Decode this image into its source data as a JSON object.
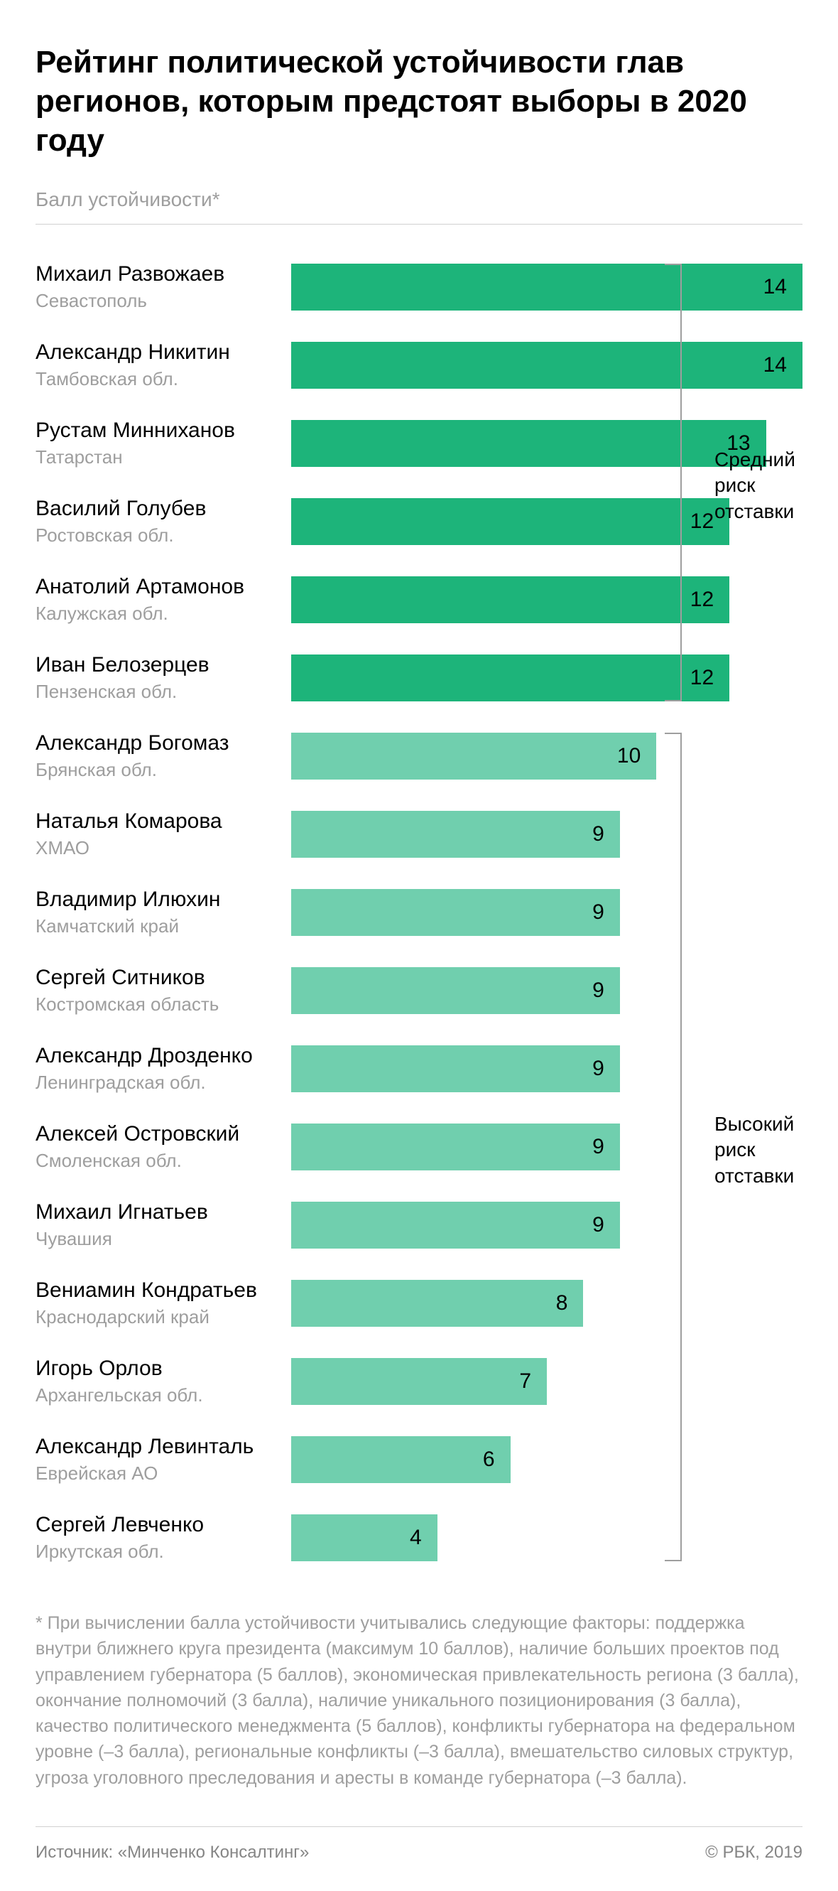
{
  "title": "Рейтинг политической устойчивости глав регионов, которым предстоят выборы в 2020 году",
  "subtitle": "Балл устойчивости*",
  "chart": {
    "type": "bar",
    "max_value": 14,
    "bar_area_width_pct": 100,
    "colors": {
      "medium_risk": "#1db47a",
      "high_risk": "#70cfae",
      "text": "#000000",
      "muted": "#9e9e9e",
      "divider": "#d0d0d0",
      "background": "#ffffff"
    },
    "rows": [
      {
        "name": "Михаил Развожаев",
        "region": "Севастополь",
        "value": 14,
        "group": "medium"
      },
      {
        "name": "Александр Никитин",
        "region": "Тамбовская обл.",
        "value": 14,
        "group": "medium"
      },
      {
        "name": "Рустам Минниханов",
        "region": "Татарстан",
        "value": 13,
        "group": "medium"
      },
      {
        "name": "Василий Голубев",
        "region": "Ростовская обл.",
        "value": 12,
        "group": "medium"
      },
      {
        "name": "Анатолий Артамонов",
        "region": "Калужская обл.",
        "value": 12,
        "group": "medium"
      },
      {
        "name": "Иван Белозерцев",
        "region": "Пензенская обл.",
        "value": 12,
        "group": "medium"
      },
      {
        "name": "Александр Богомаз",
        "region": "Брянская обл.",
        "value": 10,
        "group": "high"
      },
      {
        "name": "Наталья Комарова",
        "region": "ХМАО",
        "value": 9,
        "group": "high"
      },
      {
        "name": "Владимир Илюхин",
        "region": "Камчатский край",
        "value": 9,
        "group": "high"
      },
      {
        "name": "Сергей Ситников",
        "region": "Костромская область",
        "value": 9,
        "group": "high"
      },
      {
        "name": "Александр Дрозденко",
        "region": "Ленинградская обл.",
        "value": 9,
        "group": "high"
      },
      {
        "name": "Алексей Островский",
        "region": "Смоленская обл.",
        "value": 9,
        "group": "high"
      },
      {
        "name": "Михаил Игнатьев",
        "region": "Чувашия",
        "value": 9,
        "group": "high"
      },
      {
        "name": "Вениамин Кондратьев",
        "region": "Краснодарский край",
        "value": 8,
        "group": "high"
      },
      {
        "name": "Игорь Орлов",
        "region": "Архангельская обл.",
        "value": 7,
        "group": "high"
      },
      {
        "name": "Александр Левинталь",
        "region": "Еврейская АО",
        "value": 6,
        "group": "high"
      },
      {
        "name": "Сергей Левченко",
        "region": "Иркутская обл.",
        "value": 4,
        "group": "high"
      }
    ],
    "groups": {
      "medium": {
        "label": "Средний риск отставки",
        "from": 0,
        "to": 5
      },
      "high": {
        "label": "Высокий риск отставки",
        "from": 6,
        "to": 16
      }
    }
  },
  "footnote": "* При вычислении балла устойчивости учитывались следующие факторы: поддержка внутри ближнего круга президента (максимум 10 баллов), наличие больших проектов под управлением губернатора (5 баллов), экономическая привлекательность региона (3 балла), окончание полномочий (3 балла), наличие уникального позиционирования (3 балла), качество политического менеджмента (5 баллов), конфликты губернатора на федеральном уровне (–3 балла), региональные конфликты (–3 балла), вмешательство силовых структур, угроза уголовного преследования и аресты в команде губернатора (–3 балла).",
  "footer": {
    "source": "Источник: «Минченко Консалтинг»",
    "copyright": "© РБК, 2019"
  }
}
